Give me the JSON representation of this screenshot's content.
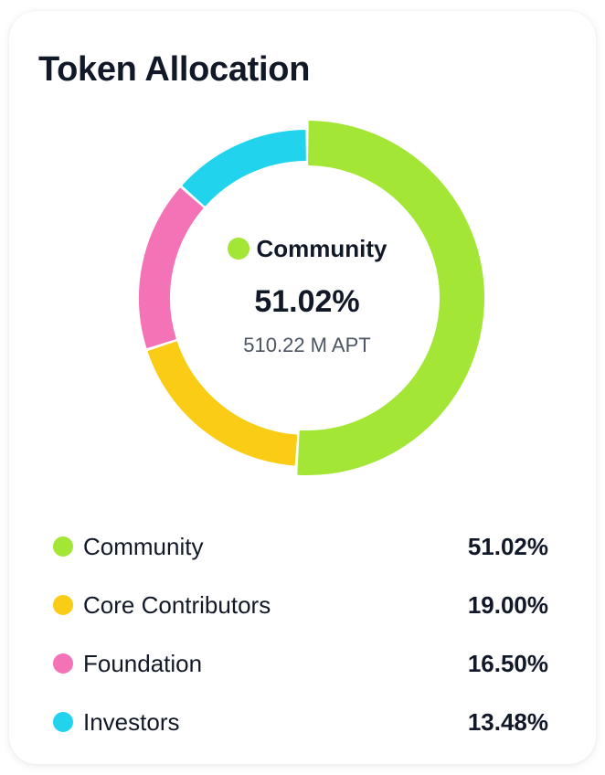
{
  "card": {
    "title": "Token Allocation"
  },
  "center": {
    "label": "Community",
    "percent": "51.02%",
    "amount": "510.22 M APT",
    "color": "#A3E635"
  },
  "legend": [
    {
      "label": "Community",
      "value": "51.02%",
      "color": "#A3E635"
    },
    {
      "label": "Core Contributors",
      "value": "19.00%",
      "color": "#FACC15"
    },
    {
      "label": "Foundation",
      "value": "16.50%",
      "color": "#F472B6"
    },
    {
      "label": "Investors",
      "value": "13.48%",
      "color": "#22D3EE"
    }
  ],
  "chart_data": {
    "type": "pie",
    "title": "Token Allocation",
    "variant": "donut",
    "categories": [
      "Community",
      "Core Contributors",
      "Foundation",
      "Investors"
    ],
    "values": [
      51.02,
      19.0,
      16.5,
      13.48
    ],
    "unit": "%",
    "colors": [
      "#A3E635",
      "#FACC15",
      "#F472B6",
      "#22D3EE"
    ],
    "active_segment": "Community",
    "active_amount": "510.22 M APT",
    "legend_position": "bottom"
  }
}
